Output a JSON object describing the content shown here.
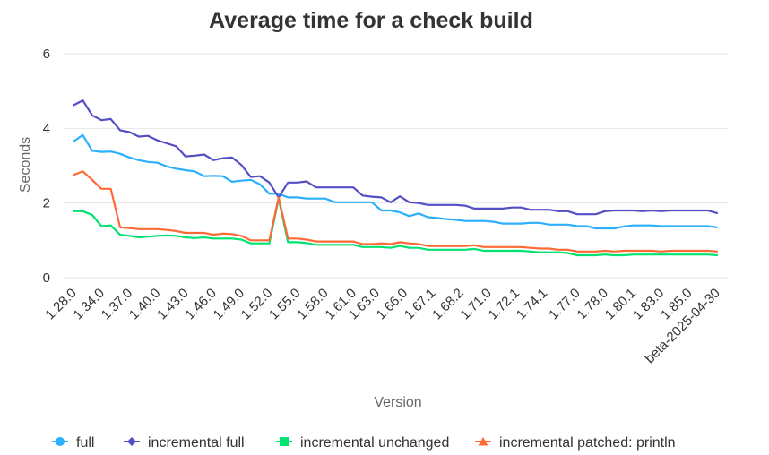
{
  "chart_data": {
    "type": "line",
    "title": "Average time for a check build",
    "xlabel": "Version",
    "ylabel": "Seconds",
    "ylim": [
      0,
      6
    ],
    "yticks": [
      "0",
      "2",
      "4",
      "6"
    ],
    "grid": true,
    "legend_position": "bottom",
    "x_tick_labels": [
      "1.28.0",
      "1.34.0",
      "1.37.0",
      "1.40.0",
      "1.43.0",
      "1.46.0",
      "1.49.0",
      "1.52.0",
      "1.55.0",
      "1.58.0",
      "1.61.0",
      "1.63.0",
      "1.66.0",
      "1.67.1",
      "1.68.2",
      "1.71.0",
      "1.72.1",
      "1.74.1",
      "1.77.0",
      "1.78.0",
      "1.80.1",
      "1.83.0",
      "1.85.0",
      "beta-2025-04-30"
    ],
    "x_tick_positions": [
      0,
      3,
      6,
      9,
      12,
      15,
      18,
      21,
      24,
      27,
      30,
      32.5,
      35.5,
      38.5,
      41.5,
      44.5,
      47.5,
      50.5,
      54,
      57,
      60,
      63,
      66,
      69
    ],
    "series": [
      {
        "name": "full",
        "color": "#2caffe",
        "marker": "circle",
        "values": [
          3.65,
          3.82,
          3.4,
          3.37,
          3.38,
          3.32,
          3.22,
          3.15,
          3.1,
          3.08,
          2.98,
          2.92,
          2.88,
          2.85,
          2.72,
          2.73,
          2.72,
          2.57,
          2.6,
          2.62,
          2.5,
          2.25,
          2.25,
          2.15,
          2.15,
          2.12,
          2.12,
          2.12,
          2.02,
          2.02,
          2.02,
          2.02,
          2.02,
          1.8,
          1.8,
          1.75,
          1.65,
          1.72,
          1.62,
          1.6,
          1.57,
          1.55,
          1.52,
          1.52,
          1.52,
          1.5,
          1.45,
          1.45,
          1.45,
          1.47,
          1.47,
          1.42,
          1.42,
          1.42,
          1.38,
          1.38,
          1.32,
          1.32,
          1.32,
          1.37,
          1.4,
          1.4,
          1.4,
          1.38,
          1.38,
          1.38,
          1.38,
          1.38,
          1.38,
          1.35
        ]
      },
      {
        "name": "incremental full",
        "color": "#544fc5",
        "marker": "diamond",
        "values": [
          4.62,
          4.75,
          4.35,
          4.22,
          4.25,
          3.95,
          3.9,
          3.78,
          3.8,
          3.68,
          3.6,
          3.52,
          3.25,
          3.27,
          3.3,
          3.15,
          3.2,
          3.22,
          3.02,
          2.7,
          2.72,
          2.55,
          2.15,
          2.55,
          2.55,
          2.58,
          2.42,
          2.42,
          2.42,
          2.42,
          2.42,
          2.2,
          2.17,
          2.15,
          2.02,
          2.18,
          2.02,
          2.0,
          1.95,
          1.95,
          1.95,
          1.95,
          1.93,
          1.85,
          1.85,
          1.85,
          1.85,
          1.88,
          1.88,
          1.82,
          1.82,
          1.82,
          1.78,
          1.78,
          1.7,
          1.7,
          1.7,
          1.78,
          1.8,
          1.8,
          1.8,
          1.78,
          1.8,
          1.78,
          1.8,
          1.8,
          1.8,
          1.8,
          1.8,
          1.73
        ]
      },
      {
        "name": "incremental unchanged",
        "color": "#00e272",
        "marker": "square",
        "values": [
          1.78,
          1.78,
          1.68,
          1.38,
          1.4,
          1.15,
          1.12,
          1.08,
          1.1,
          1.12,
          1.13,
          1.12,
          1.08,
          1.06,
          1.08,
          1.05,
          1.05,
          1.05,
          1.02,
          0.92,
          0.92,
          0.92,
          2.12,
          0.95,
          0.95,
          0.93,
          0.88,
          0.88,
          0.88,
          0.88,
          0.88,
          0.82,
          0.82,
          0.82,
          0.8,
          0.85,
          0.8,
          0.8,
          0.75,
          0.75,
          0.75,
          0.75,
          0.75,
          0.77,
          0.72,
          0.72,
          0.72,
          0.72,
          0.72,
          0.7,
          0.68,
          0.68,
          0.68,
          0.66,
          0.6,
          0.6,
          0.6,
          0.62,
          0.6,
          0.6,
          0.62,
          0.62,
          0.62,
          0.62,
          0.62,
          0.62,
          0.62,
          0.62,
          0.62,
          0.6
        ]
      },
      {
        "name": "incremental patched: println",
        "color": "#fe6a35",
        "marker": "triangle",
        "values": [
          2.75,
          2.85,
          2.62,
          2.38,
          2.38,
          1.35,
          1.33,
          1.3,
          1.3,
          1.3,
          1.28,
          1.25,
          1.2,
          1.2,
          1.2,
          1.15,
          1.18,
          1.17,
          1.12,
          1.0,
          1.0,
          1.0,
          2.15,
          1.05,
          1.05,
          1.02,
          0.97,
          0.97,
          0.97,
          0.97,
          0.97,
          0.9,
          0.9,
          0.92,
          0.9,
          0.95,
          0.92,
          0.9,
          0.85,
          0.85,
          0.85,
          0.85,
          0.85,
          0.87,
          0.82,
          0.82,
          0.82,
          0.82,
          0.82,
          0.8,
          0.78,
          0.78,
          0.75,
          0.75,
          0.7,
          0.7,
          0.7,
          0.72,
          0.7,
          0.72,
          0.72,
          0.72,
          0.72,
          0.7,
          0.72,
          0.72,
          0.72,
          0.72,
          0.72,
          0.7
        ]
      }
    ]
  }
}
